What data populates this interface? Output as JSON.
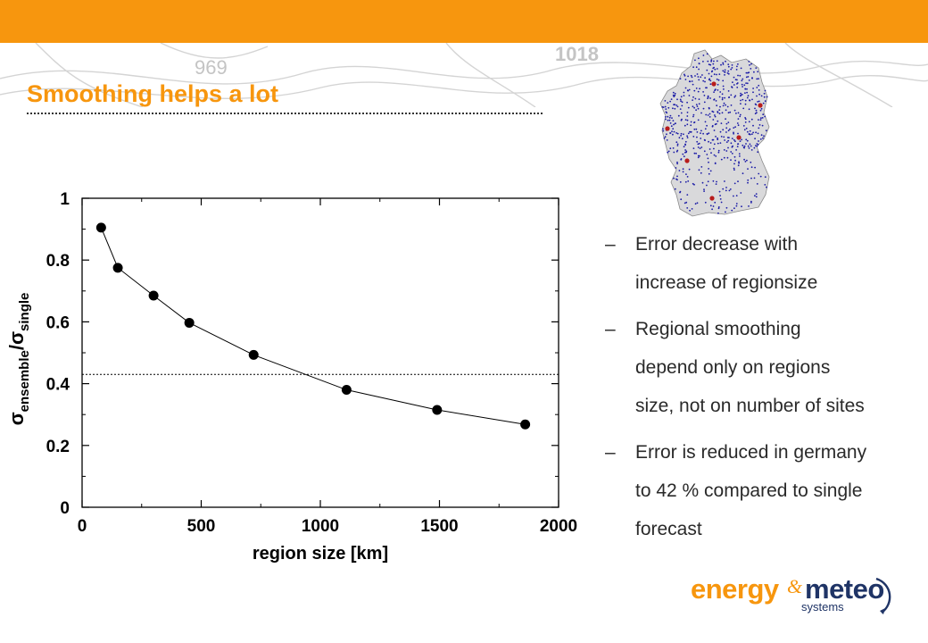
{
  "slide": {
    "title": "Smoothing helps a lot",
    "background_isobar_labels": [
      "969",
      "1018"
    ]
  },
  "bullets": [
    {
      "marker": "–",
      "lines": [
        "Error decrease with",
        "increase of regionsize"
      ]
    },
    {
      "marker": "–",
      "lines": [
        "Regional smoothing",
        "depend only on regions",
        "size, not on number of sites"
      ]
    },
    {
      "marker": "–",
      "lines": [
        "Error is reduced in germany",
        "to 42 % compared to single",
        "forecast"
      ]
    }
  ],
  "logo": {
    "energy": "energy",
    "amp": "&",
    "meteo": "meteo",
    "systems": "systems"
  },
  "colors": {
    "accent": "#f7960e",
    "brand_blue": "#1f3466",
    "map_dots": "#1a1aa6",
    "map_hotspots": "#b81c1c"
  },
  "chart_data": {
    "type": "line",
    "xlabel": "region size [km]",
    "ylabel": "σensemble/σsingle",
    "ylabel_parts": {
      "sigma1": "σ",
      "sub1": "ensemble",
      "slash": "/",
      "sigma2": "σ",
      "sub2": "single"
    },
    "xlim": [
      0,
      2000
    ],
    "ylim": [
      0,
      1
    ],
    "xticks": [
      0,
      500,
      1000,
      1500,
      2000
    ],
    "yticks": [
      0,
      0.2,
      0.4,
      0.6,
      0.8,
      1
    ],
    "xtick_labels": [
      "0",
      "500",
      "1000",
      "1500",
      "2000"
    ],
    "ytick_labels": [
      "0",
      "0.2",
      "0.4",
      "0.6",
      "0.8",
      "1"
    ],
    "grid": false,
    "markers": "filled-circle",
    "series": [
      {
        "x": [
          80,
          150,
          300,
          450,
          720,
          1110,
          1490,
          1860
        ],
        "y": [
          0.905,
          0.775,
          0.685,
          0.597,
          0.493,
          0.38,
          0.315,
          0.268
        ]
      }
    ],
    "reference_line": {
      "y": 0.43,
      "style": "dotted"
    }
  }
}
